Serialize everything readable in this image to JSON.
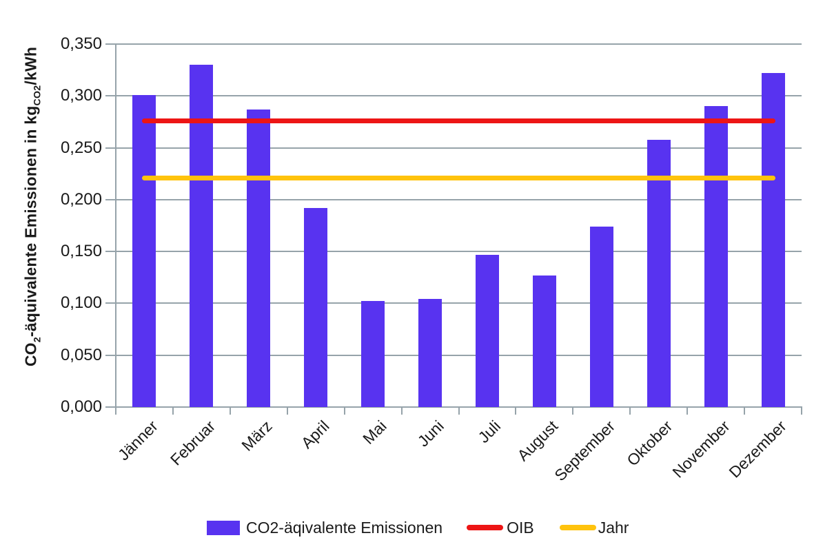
{
  "chart_data": {
    "type": "bar",
    "title": "",
    "categories": [
      "Jänner",
      "Februar",
      "März",
      "April",
      "Mai",
      "Juni",
      "Juli",
      "August",
      "September",
      "Oktober",
      "November",
      "Dezember"
    ],
    "series": [
      {
        "name": "CO2-äqivalente Emissionen",
        "type": "bar",
        "color": "#5833F0",
        "values": [
          0.301,
          0.33,
          0.287,
          0.192,
          0.102,
          0.104,
          0.147,
          0.127,
          0.174,
          0.258,
          0.29,
          0.322
        ]
      },
      {
        "name": "OIB",
        "type": "const-line",
        "color": "#ED1515",
        "value": 0.276
      },
      {
        "name": "Jahr",
        "type": "const-line",
        "color": "#FFC30D",
        "value": 0.221
      }
    ],
    "ylabel_parts": {
      "pre": "CO",
      "sub1": "2",
      "mid": "-äquivalente Emissionen in kg",
      "sub2": "CO2",
      "post": "/kWh"
    },
    "ylabel_plain": "CO2-äquivalente Emissionen in kgCO2/kWh",
    "xlabel": "",
    "y_ticks": {
      "values": [
        0,
        0.05,
        0.1,
        0.15,
        0.2,
        0.25,
        0.3,
        0.35
      ],
      "labels": [
        "0,000",
        "0,050",
        "0,100",
        "0,150",
        "0,200",
        "0,250",
        "0,300",
        "0,350"
      ]
    },
    "ylim": [
      0,
      0.35
    ],
    "grid": true,
    "legend_position": "bottom",
    "decimal_separator": "comma",
    "colors": {
      "grid": "#96A3AA",
      "axis": "#96A3AA",
      "text": "#1A1A1A",
      "background": "#FFFFFF"
    }
  }
}
